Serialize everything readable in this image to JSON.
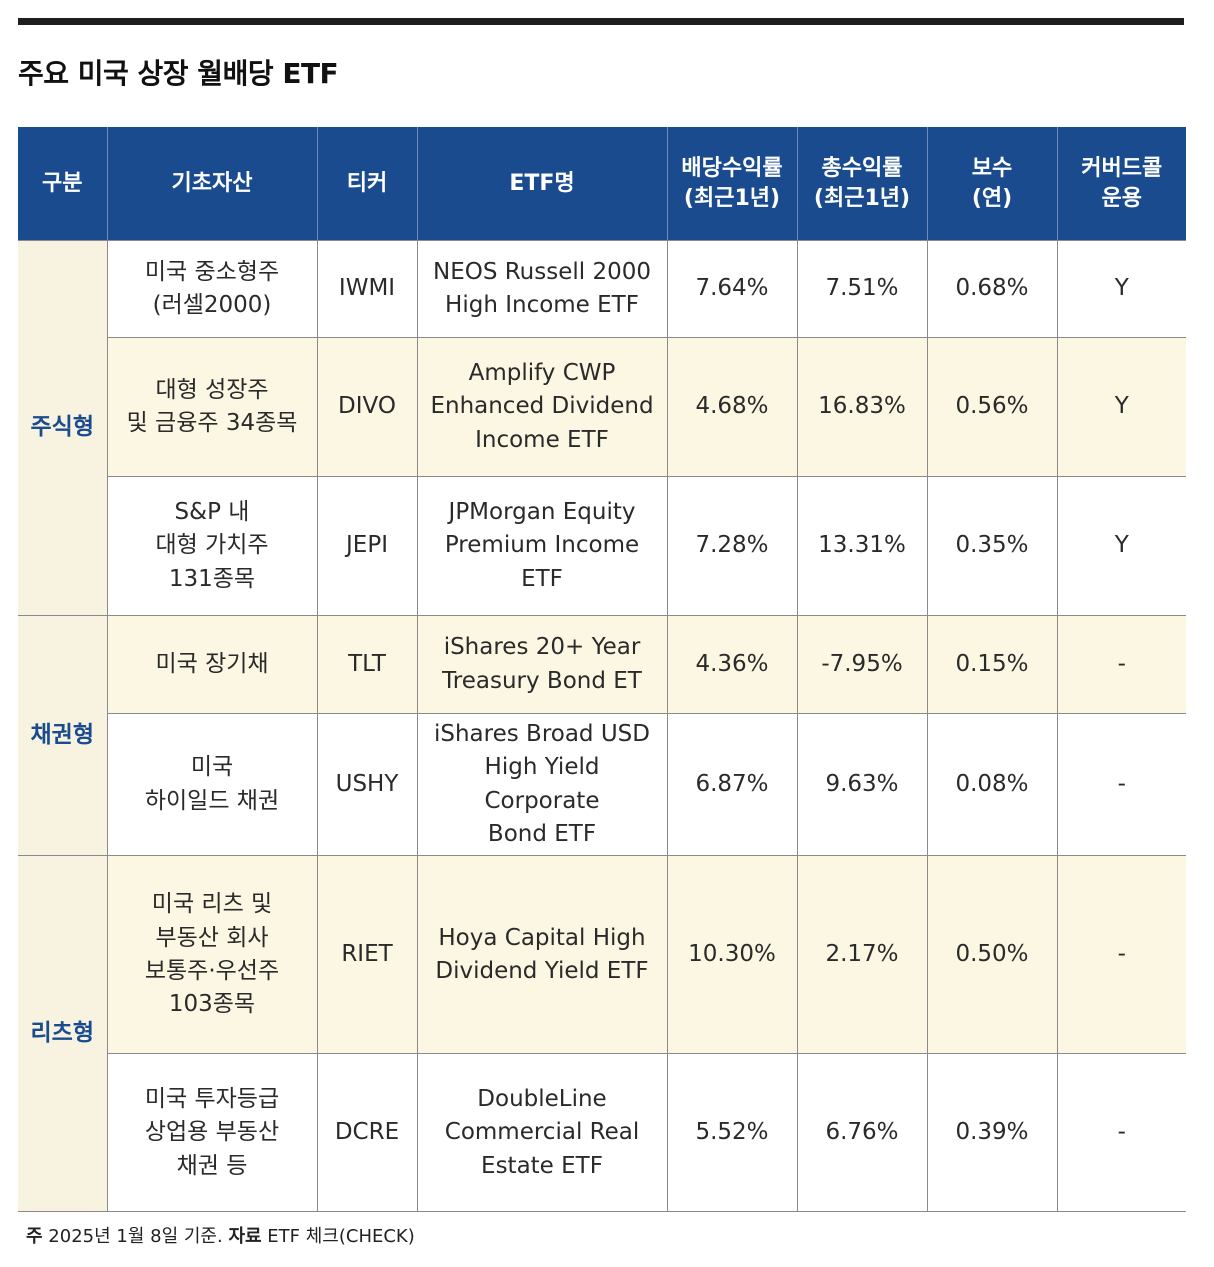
{
  "title": "주요 미국 상장 월배당 ETF",
  "headers": [
    "구분",
    "기초자산",
    "티커",
    "ETF명",
    "배당수익률\n(최근1년)",
    "총수익률\n(최근1년)",
    "보수\n(연)",
    "커버드콜\n운용"
  ],
  "groups": [
    "주식형",
    "채권형",
    "리츠형"
  ],
  "rows": [
    {
      "asset": "미국 중소형주\n(러셀2000)",
      "ticker": "IWMI",
      "name": "NEOS Russell 2000\nHigh Income ETF",
      "dividend": "7.64%",
      "total": "7.51%",
      "fee": "0.68%",
      "covered": "Y"
    },
    {
      "asset": "대형 성장주\n및 금융주 34종목",
      "ticker": "DIVO",
      "name": "Amplify CWP\nEnhanced Dividend\nIncome ETF",
      "dividend": "4.68%",
      "total": "16.83%",
      "fee": "0.56%",
      "covered": "Y"
    },
    {
      "asset": "S&P 내\n대형 가치주\n131종목",
      "ticker": "JEPI",
      "name": "JPMorgan Equity\nPremium Income\nETF",
      "dividend": "7.28%",
      "total": "13.31%",
      "fee": "0.35%",
      "covered": "Y"
    },
    {
      "asset": "미국 장기채",
      "ticker": "TLT",
      "name": "iShares 20+ Year\nTreasury Bond ET",
      "dividend": "4.36%",
      "total": "-7.95%",
      "fee": "0.15%",
      "covered": "-"
    },
    {
      "asset": "미국\n하이일드 채권",
      "ticker": "USHY",
      "name": "iShares Broad USD\nHigh Yield Corporate\nBond ETF",
      "dividend": "6.87%",
      "total": "9.63%",
      "fee": "0.08%",
      "covered": "-"
    },
    {
      "asset": "미국 리츠 및\n부동산 회사\n보통주·우선주\n103종목",
      "ticker": "RIET",
      "name": "Hoya Capital High\nDividend Yield ETF",
      "dividend": "10.30%",
      "total": "2.17%",
      "fee": "0.50%",
      "covered": "-"
    },
    {
      "asset": "미국 투자등급\n상업용 부동산\n채권 등",
      "ticker": "DCRE",
      "name": "DoubleLine\nCommercial Real\nEstate ETF",
      "dividend": "5.52%",
      "total": "6.76%",
      "fee": "0.39%",
      "covered": "-"
    }
  ],
  "footnote": {
    "note_label": "주",
    "note_text": "2025년 1월 8일 기준.",
    "source_label": "자료",
    "source_text": "ETF 체크(CHECK)"
  }
}
